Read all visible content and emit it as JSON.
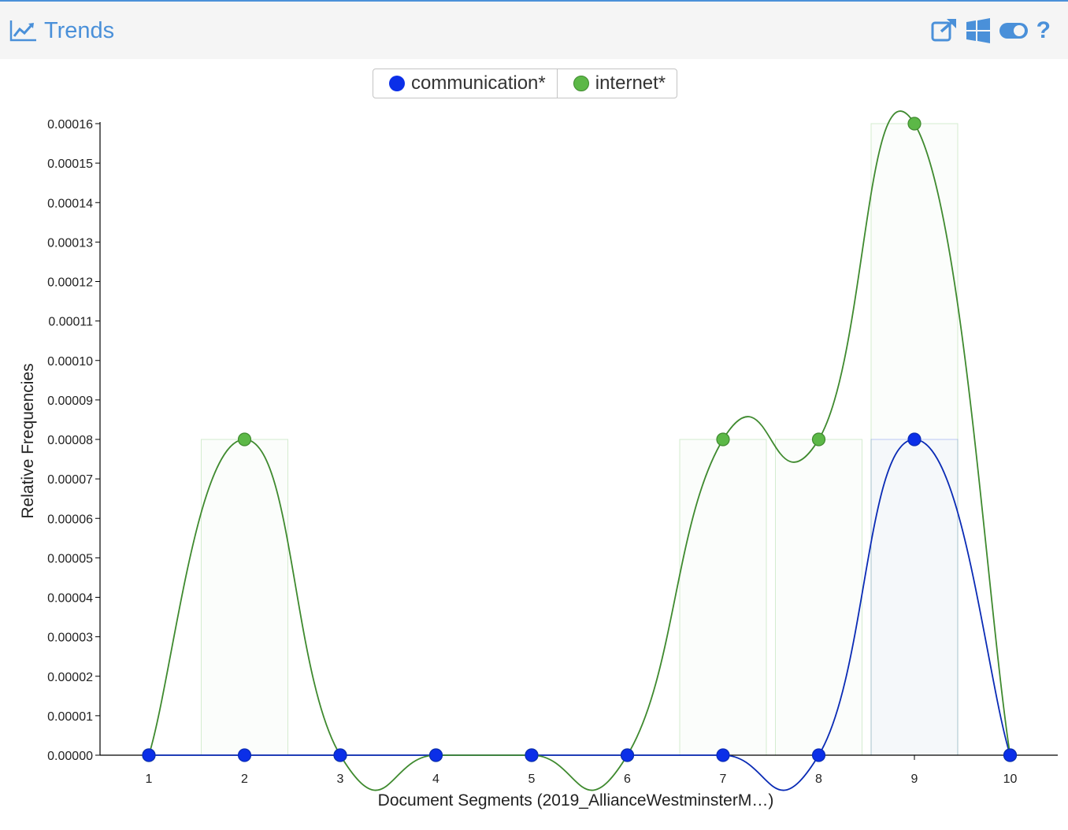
{
  "header": {
    "title": "Trends",
    "icons": [
      "line-chart-icon",
      "export-icon",
      "windows-icon",
      "toggle-icon",
      "help-icon"
    ],
    "help_label": "?",
    "accent_color": "#4a90d9"
  },
  "legend": {
    "items": [
      {
        "label": "communication*",
        "color": "#0b2fe8"
      },
      {
        "label": "internet*",
        "color": "#5cb847"
      }
    ]
  },
  "chart_data": {
    "type": "line",
    "xlabel": "Document Segments (2019_AllianceWestminsterM…)",
    "ylabel": "Relative Frequencies",
    "x": [
      1,
      2,
      3,
      4,
      5,
      6,
      7,
      8,
      9,
      10
    ],
    "ylim": [
      0,
      0.00016
    ],
    "y_ticks": [
      "0.00000",
      "0.00001",
      "0.00002",
      "0.00003",
      "0.00004",
      "0.00005",
      "0.00006",
      "0.00007",
      "0.00008",
      "0.00009",
      "0.00010",
      "0.00011",
      "0.00012",
      "0.00013",
      "0.00014",
      "0.00015",
      "0.00016"
    ],
    "series": [
      {
        "name": "communication*",
        "color": "#0b2fe8",
        "line_color": "#0a2bb5",
        "values": [
          0,
          0,
          0,
          0,
          0,
          0,
          0,
          0,
          8e-05,
          0
        ]
      },
      {
        "name": "internet*",
        "color": "#5cb847",
        "line_color": "#3f8a2f",
        "values": [
          0,
          8e-05,
          0,
          0,
          0,
          0,
          8e-05,
          8e-05,
          0.00016,
          0
        ]
      }
    ]
  }
}
